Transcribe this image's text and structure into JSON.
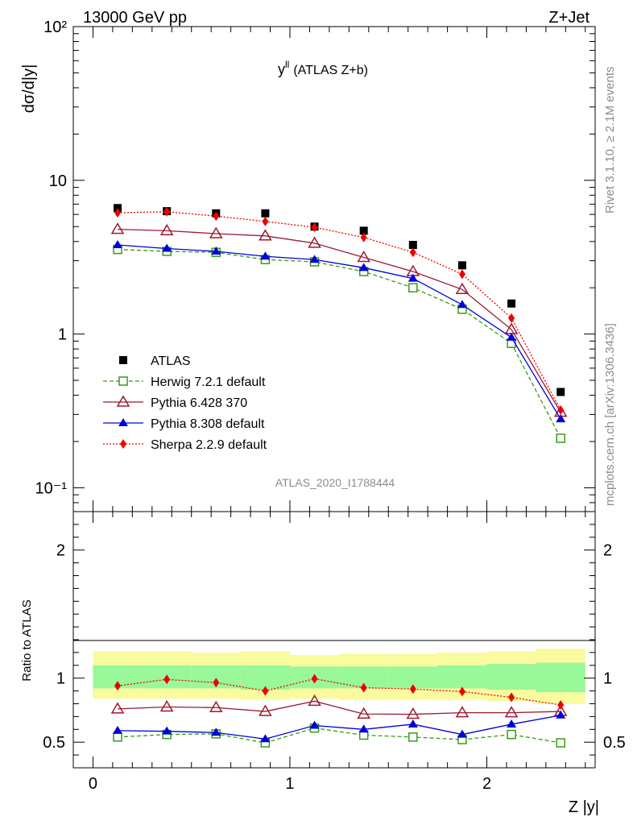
{
  "header": {
    "left": "13000 GeV pp",
    "right": "Z+Jet"
  },
  "side_labels": {
    "rivet": "Rivet 3.1.10, ≥ 2.1M events",
    "mcplots": "mcplots.cern.ch [arXiv:1306.3436]"
  },
  "watermark": "ATLAS_2020_I1788444",
  "chart_data": [
    {
      "type": "line",
      "title_main": "y",
      "title_sup": "ll",
      "title_rest": "(ATLAS Z+b)",
      "ylabel": "dσ/d|y|",
      "xlabel": "",
      "yscale": "log",
      "ylim": [
        0.07,
        100
      ],
      "xlim": [
        -0.1,
        2.55
      ],
      "y_tick_labels": [
        "10⁻¹",
        "1",
        "10",
        "10²"
      ],
      "x": [
        0.125,
        0.375,
        0.625,
        0.875,
        1.125,
        1.375,
        1.625,
        1.875,
        2.125,
        2.375
      ],
      "series": [
        {
          "name": "ATLAS",
          "color": "#000000",
          "marker": "square",
          "line": "none",
          "values": [
            6.6,
            6.3,
            6.1,
            6.1,
            5.0,
            4.7,
            3.8,
            2.8,
            1.58,
            0.42
          ]
        },
        {
          "name": "Herwig 7.2.1 default",
          "color": "#3a9a1a",
          "marker": "open-square",
          "line": "dashed",
          "values": [
            3.55,
            3.45,
            3.4,
            3.05,
            2.95,
            2.55,
            2.0,
            1.45,
            0.87,
            0.21
          ]
        },
        {
          "name": "Pythia 6.428 370",
          "color": "#9b1b30",
          "marker": "open-triangle",
          "line": "solid",
          "values": [
            4.8,
            4.7,
            4.5,
            4.35,
            3.9,
            3.15,
            2.55,
            1.95,
            1.07,
            0.31
          ]
        },
        {
          "name": "Pythia 8.308 default",
          "color": "#0000dd",
          "marker": "filled-triangle",
          "line": "solid",
          "values": [
            3.8,
            3.6,
            3.45,
            3.2,
            3.05,
            2.7,
            2.3,
            1.55,
            0.95,
            0.28
          ]
        },
        {
          "name": "Sherpa 2.2.9 default",
          "color": "#ee0000",
          "marker": "diamond",
          "line": "dotted",
          "values": [
            6.15,
            6.25,
            5.85,
            5.4,
            4.95,
            4.25,
            3.4,
            2.45,
            1.27,
            0.32
          ]
        }
      ],
      "legend_position": "lower-left"
    },
    {
      "type": "line",
      "ylabel": "Ratio to ATLAS",
      "xlabel": "Z |y|",
      "ylim": [
        0.3,
        2.3
      ],
      "xlim": [
        -0.1,
        2.55
      ],
      "x_tick_labels": [
        "0",
        "1",
        "2"
      ],
      "y_tick_labels": [
        "0.5",
        "1",
        "2"
      ],
      "x": [
        0.125,
        0.375,
        0.625,
        0.875,
        1.125,
        1.375,
        1.625,
        1.875,
        2.125,
        2.375
      ],
      "bands": {
        "inner_color": "#99f899",
        "outer_color": "#fafa9e",
        "bin_edges": [
          0.0,
          0.25,
          0.5,
          0.75,
          1.0,
          1.25,
          1.5,
          1.75,
          2.0,
          2.25,
          2.5
        ],
        "inner_low": [
          0.92,
          0.92,
          0.92,
          0.91,
          0.92,
          0.92,
          0.92,
          0.92,
          0.91,
          0.89
        ],
        "inner_high": [
          1.1,
          1.1,
          1.1,
          1.1,
          1.09,
          1.09,
          1.09,
          1.1,
          1.11,
          1.12
        ],
        "outer_low": [
          0.84,
          0.84,
          0.84,
          0.83,
          0.84,
          0.83,
          0.83,
          0.83,
          0.82,
          0.8
        ],
        "outer_high": [
          1.21,
          1.21,
          1.2,
          1.21,
          1.18,
          1.19,
          1.19,
          1.2,
          1.21,
          1.23
        ]
      },
      "series": [
        {
          "name": "Herwig 7.2.1 default",
          "color": "#3a9a1a",
          "marker": "open-square",
          "line": "dashed",
          "values": [
            0.54,
            0.56,
            0.565,
            0.495,
            0.61,
            0.555,
            0.54,
            0.52,
            0.56,
            0.495
          ]
        },
        {
          "name": "Pythia 6.428 370",
          "color": "#9b1b30",
          "marker": "open-triangle",
          "line": "solid",
          "values": [
            0.76,
            0.775,
            0.77,
            0.74,
            0.82,
            0.72,
            0.718,
            0.73,
            0.73,
            0.74
          ]
        },
        {
          "name": "Pythia 8.308 default",
          "color": "#0000dd",
          "marker": "filled-triangle",
          "line": "solid",
          "values": [
            0.59,
            0.585,
            0.575,
            0.525,
            0.63,
            0.6,
            0.64,
            0.56,
            0.64,
            0.71
          ]
        },
        {
          "name": "Sherpa 2.2.9 default",
          "color": "#ee0000",
          "marker": "diamond",
          "line": "dotted",
          "values": [
            0.94,
            0.99,
            0.965,
            0.9,
            0.995,
            0.925,
            0.915,
            0.895,
            0.85,
            0.79
          ]
        }
      ]
    }
  ]
}
